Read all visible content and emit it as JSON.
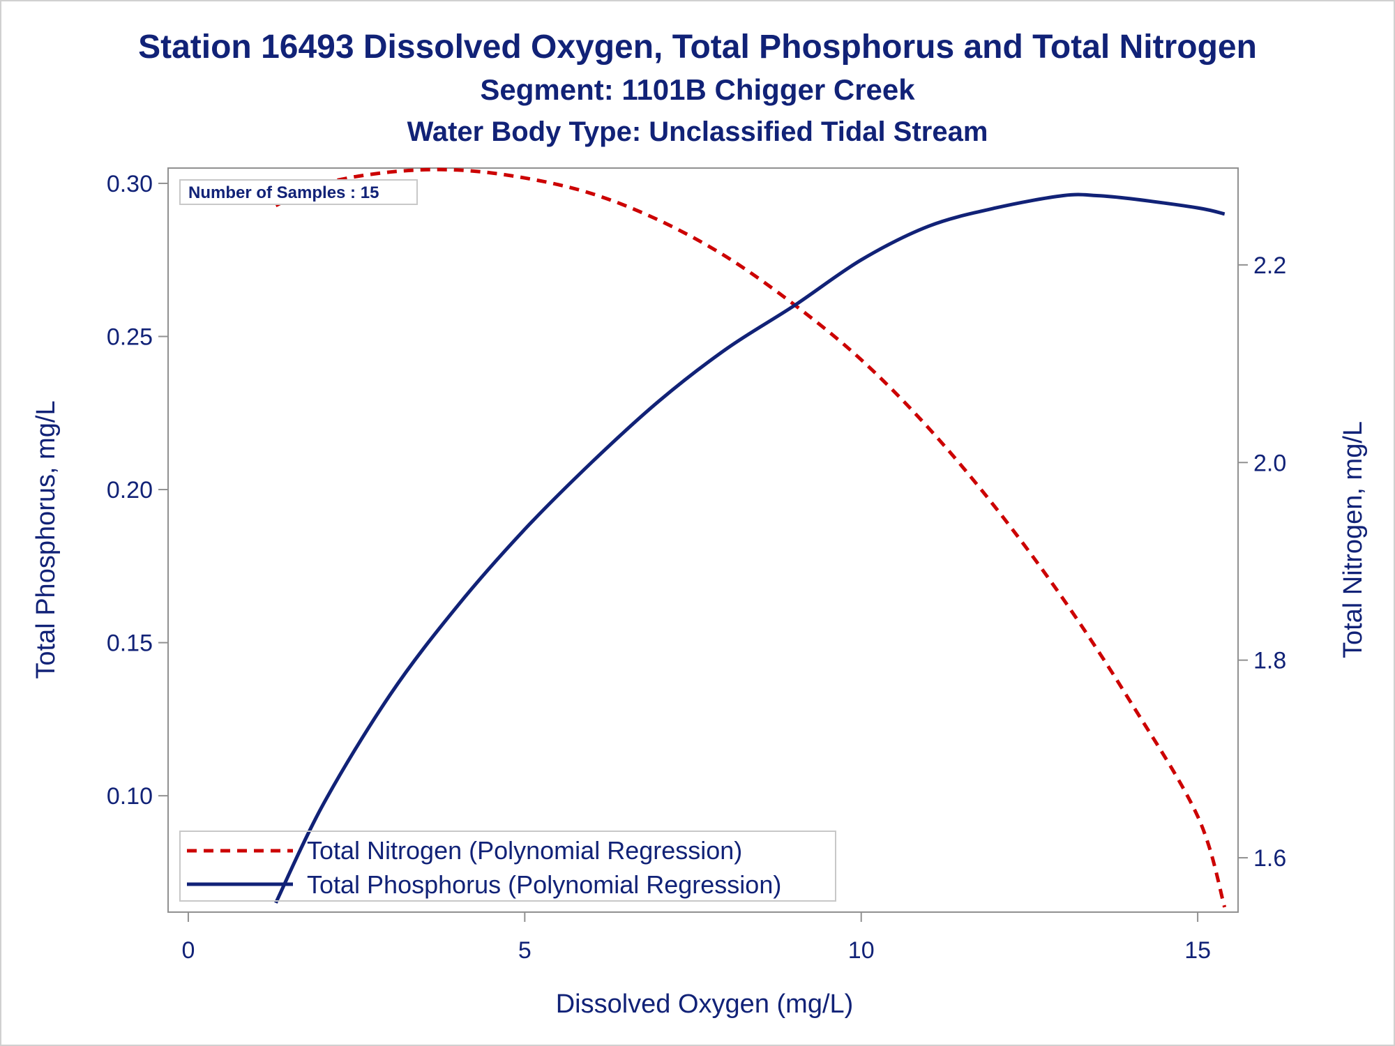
{
  "titles": {
    "title": "Station 16493  Dissolved Oxygen, Total Phosphorus and Total Nitrogen",
    "subtitle1": "Segment: 1101B  Chigger Creek",
    "subtitle2": "Water Body Type: Unclassified Tidal Stream"
  },
  "chart_data": {
    "type": "line",
    "xlabel": "Dissolved Oxygen (mg/L)",
    "ylabel": "Total Phosphorus, mg/L",
    "y2label": "Total Nitrogen, mg/L",
    "xlim": [
      -0.3,
      15.6
    ],
    "ylim": [
      0.062,
      0.305
    ],
    "y2lim": [
      1.545,
      2.298
    ],
    "xticks": [
      0,
      5,
      10,
      15
    ],
    "yticks": [
      0.1,
      0.15,
      0.2,
      0.25,
      0.3
    ],
    "y2ticks": [
      1.6,
      1.8,
      2.0,
      2.2
    ],
    "xtick_labels": [
      "0",
      "5",
      "10",
      "15"
    ],
    "ytick_labels": [
      "0.10",
      "0.15",
      "0.20",
      "0.25",
      "0.30"
    ],
    "y2tick_labels": [
      "1.6",
      "1.8",
      "2.0",
      "2.2"
    ],
    "annotation": "Number of Samples : 15",
    "legend_position": "bottom-left",
    "grid": false,
    "series": [
      {
        "name": "Total Nitrogen (Polynomial Regression)",
        "axis": "y2",
        "style": "dashed",
        "color": "#cc0000",
        "x": [
          1.3,
          2.0,
          3.0,
          4.0,
          5.0,
          6.0,
          7.0,
          8.0,
          9.0,
          10.0,
          11.0,
          12.0,
          13.0,
          14.0,
          15.0,
          15.4
        ],
        "y": [
          2.26,
          2.282,
          2.294,
          2.296,
          2.288,
          2.272,
          2.245,
          2.208,
          2.16,
          2.104,
          2.035,
          1.954,
          1.862,
          1.758,
          1.642,
          1.55
        ]
      },
      {
        "name": "Total Phosphorus (Polynomial Regression)",
        "axis": "y1",
        "style": "solid",
        "color": "#112277",
        "x": [
          1.3,
          2.0,
          3.0,
          4.0,
          5.0,
          6.0,
          7.0,
          8.0,
          9.0,
          10.0,
          11.0,
          12.0,
          13.0,
          13.5,
          14.0,
          15.0,
          15.4
        ],
        "y": [
          0.065,
          0.097,
          0.133,
          0.162,
          0.187,
          0.209,
          0.229,
          0.246,
          0.26,
          0.275,
          0.286,
          0.292,
          0.296,
          0.296,
          0.295,
          0.292,
          0.29
        ]
      }
    ]
  }
}
